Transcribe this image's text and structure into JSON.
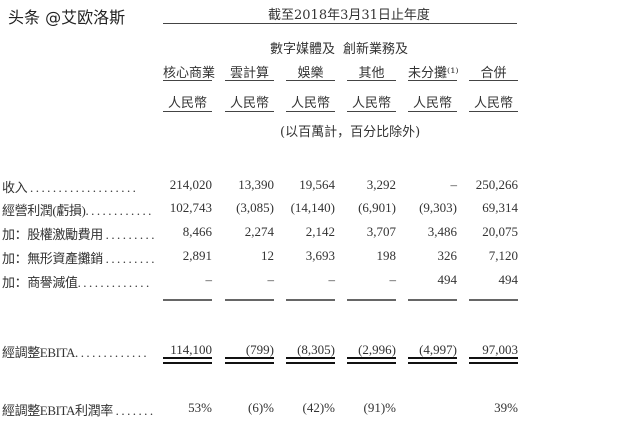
{
  "title": "截至2018年3月31日止年度",
  "group_headers": {
    "col3": "數字媒體及",
    "col4": "創新業務及"
  },
  "columns": [
    {
      "name": "核心商業",
      "unit": "人民幣"
    },
    {
      "name": "雲計算",
      "unit": "人民幣"
    },
    {
      "name": "娛樂",
      "unit": "人民幣"
    },
    {
      "name": "其他",
      "unit": "人民幣"
    },
    {
      "name": "未分攤⁽¹⁾",
      "unit": "人民幣"
    },
    {
      "name": "合併",
      "unit": "人民幣"
    }
  ],
  "note": "(以百萬計，百分比除外)",
  "rows": [
    {
      "label": "收入 . . . . . . . . . . . . . . . . . . .",
      "values": [
        "214,020",
        "13,390",
        "19,564",
        "3,292",
        "–",
        "250,266"
      ]
    },
    {
      "label": "經營利潤(虧損). . . . . . . . . . . .",
      "values": [
        "102,743",
        "(3,085)",
        "(14,140)",
        "(6,901)",
        "(9,303)",
        "69,314"
      ]
    },
    {
      "label": "加：股權激勵費用 . . . . . . . . .",
      "values": [
        "8,466",
        "2,274",
        "2,142",
        "3,707",
        "3,486",
        "20,075"
      ]
    },
    {
      "label": "加：無形資產攤銷 . . . . . . . . .",
      "values": [
        "2,891",
        "12",
        "3,693",
        "198",
        "326",
        "7,120"
      ]
    },
    {
      "label": "加：商譽減值. . . . . . . . . . . . .",
      "values": [
        "–",
        "–",
        "–",
        "–",
        "494",
        "494"
      ]
    },
    {
      "label": "經調整EBITA. . . . . . . . . . . . .",
      "values": [
        "114,100",
        "(799)",
        "(8,305)",
        "(2,996)",
        "(4,997)",
        "97,003"
      ]
    },
    {
      "label": "經調整EBITA利潤率 . . . . . . .",
      "values": [
        "53%",
        "(6)%",
        "(42)%",
        "(91)%",
        "",
        "39%"
      ]
    }
  ],
  "watermark": "头条 @艾欧洛斯"
}
